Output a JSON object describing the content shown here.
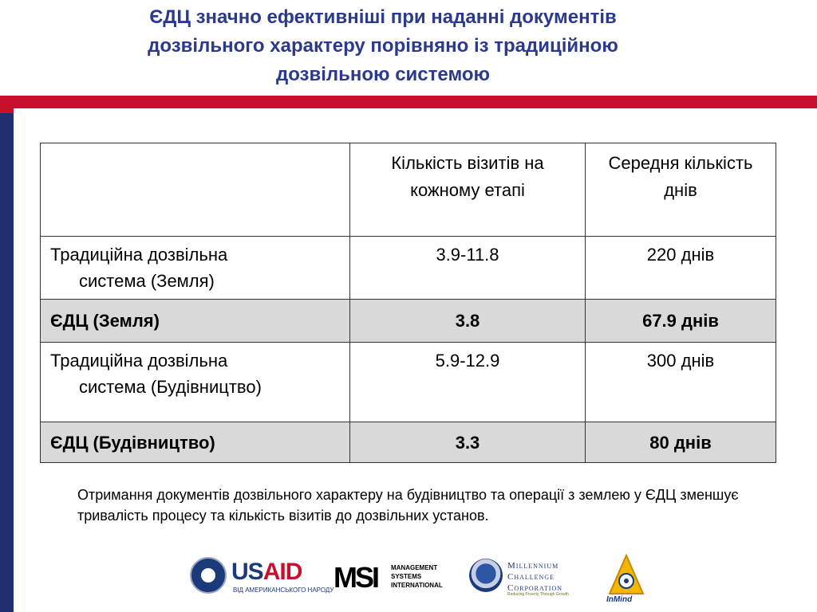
{
  "slide": {
    "title_line1": "ЄДЦ значно ефективніші  при наданні документів",
    "title_line2": "дозвільного характеру порівняно із традиційною",
    "title_line3": "дозвільною системою",
    "colors": {
      "title": "#2b3a8c",
      "stripe_red": "#c8102e",
      "stripe_blue": "#1f2f6e",
      "highlight_row": "#d9d9d9"
    }
  },
  "table": {
    "header_corner": "",
    "header_visits_line1": "Кількість візитів на",
    "header_visits_line2": "кожному етапі",
    "header_days_line1": "Середня кількість",
    "header_days_line2": "днів",
    "rows": [
      {
        "label_line1": "Традиційна дозвільна",
        "label_line2": "система (Земля)",
        "visits": "3.9-11.8",
        "days": "220 днів"
      },
      {
        "label_line1": "ЄДЦ (Земля)",
        "label_line2": "",
        "visits": "3.8",
        "days": "67.9 днів"
      },
      {
        "label_line1": "Традиційна дозвільна",
        "label_line2": "система (Будівництво)",
        "visits": "5.9-12.9",
        "days": "300 днів"
      },
      {
        "label_line1": "ЄДЦ (Будівництво)",
        "label_line2": "",
        "visits": "3.3",
        "days": "80 днів"
      }
    ]
  },
  "note": {
    "text": "Отримання документів дозвільного характеру на будівництво та операції з землею у ЄДЦ зменшує тривалість процесу  та кількість візитів до дозвільних установ."
  },
  "logos": {
    "usaid_us": "US",
    "usaid_aid": "AID",
    "usaid_sub": "ВІД АМЕРИКАНСЬКОГО НАРОДУ",
    "msi_mark": "MSI",
    "msi_text": "MANAGEMENT\nSYSTEMS\nINTERNATIONAL",
    "mcc_name": "Millennium\nChallenge\nCorporation",
    "mcc_tag": "Reducing Poverty Through Growth",
    "inmind": "InMind"
  }
}
